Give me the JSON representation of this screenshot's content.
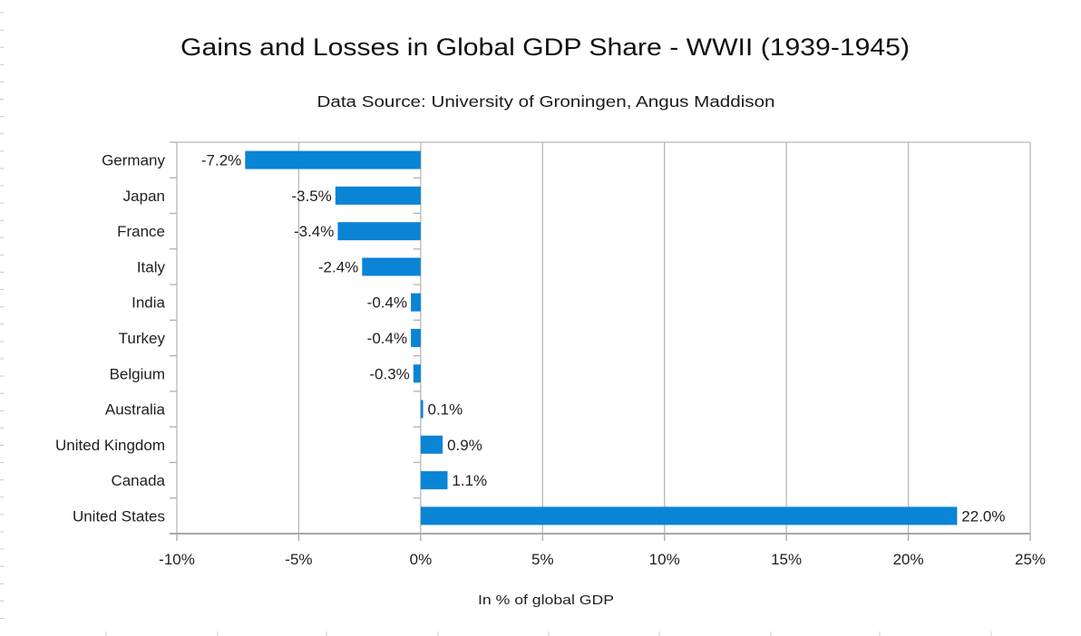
{
  "chart_data": {
    "type": "bar",
    "orientation": "horizontal",
    "title": "Gains and Losses in Global GDP Share - WWII (1939-1945)",
    "subtitle": "Data Source: University of Groningen, Angus Maddison",
    "xlabel": "In % of global GDP",
    "ylabel": "",
    "xlim": [
      -10,
      25
    ],
    "xticks": [
      -10,
      -5,
      0,
      5,
      10,
      15,
      20,
      25
    ],
    "xtick_labels": [
      "-10%",
      "-5%",
      "0%",
      "5%",
      "10%",
      "15%",
      "20%",
      "25%"
    ],
    "grid": true,
    "legend": "none",
    "categories": [
      "Germany",
      "Japan",
      "France",
      "Italy",
      "India",
      "Turkey",
      "Belgium",
      "Australia",
      "United Kingdom",
      "Canada",
      "United States"
    ],
    "values": [
      -7.2,
      -3.5,
      -3.4,
      -2.4,
      -0.4,
      -0.4,
      -0.3,
      0.1,
      0.9,
      1.1,
      22.0
    ],
    "value_labels": [
      "-7.2%",
      "-3.5%",
      "-3.4%",
      "-2.4%",
      "-0.4%",
      "-0.4%",
      "-0.3%",
      "0.1%",
      "0.9%",
      "1.1%",
      "22.0%"
    ],
    "bar_color": "#0a84d4",
    "grid_color": "#b8b8b8"
  }
}
